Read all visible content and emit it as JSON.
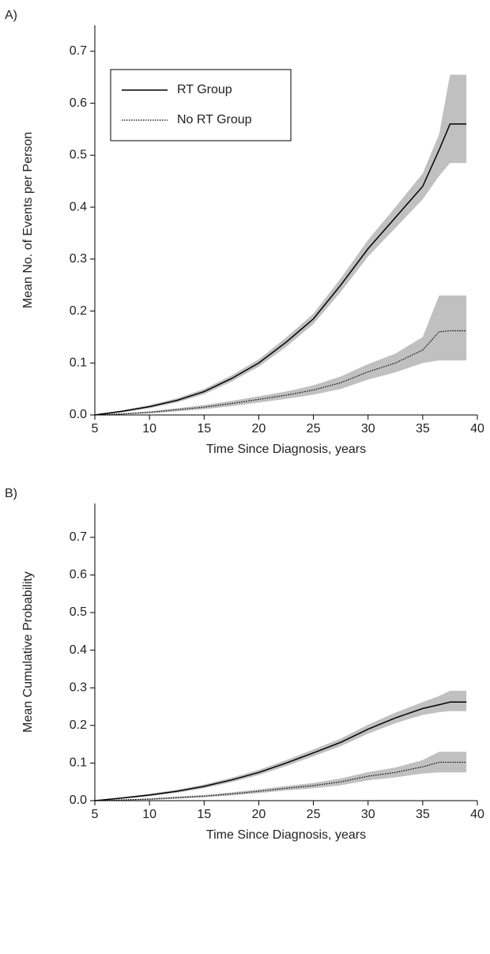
{
  "chart_data": [
    {
      "type": "line",
      "panel_label": "A)",
      "xlabel": "Time Since Diagnosis, years",
      "ylabel": "Mean No. of Events per Person",
      "x": [
        5,
        7.5,
        10,
        12.5,
        15,
        17.5,
        20,
        22.5,
        25,
        27.5,
        30,
        32.5,
        35,
        36.5,
        37.5,
        39
      ],
      "xlim": [
        5,
        40
      ],
      "xticks": [
        5,
        10,
        15,
        20,
        25,
        30,
        35,
        40
      ],
      "ylim": [
        0,
        0.75
      ],
      "yticks": [
        {
          "value": 0,
          "label": "0.0"
        },
        0.1,
        0.2,
        0.3,
        0.4,
        0.5,
        0.6,
        0.7
      ],
      "legend": "upper left",
      "band_color": "#c0c0c0",
      "series": [
        {
          "name": "RT Group",
          "color": "#000000",
          "linestyle": "solid",
          "values": [
            0,
            0.007,
            0.016,
            0.028,
            0.045,
            0.07,
            0.1,
            0.14,
            0.185,
            0.25,
            0.32,
            0.38,
            0.44,
            0.51,
            0.56,
            0.56
          ],
          "lower": [
            0,
            0.005,
            0.013,
            0.024,
            0.04,
            0.064,
            0.093,
            0.131,
            0.175,
            0.237,
            0.305,
            0.36,
            0.415,
            0.46,
            0.485,
            0.485
          ],
          "upper": [
            0,
            0.009,
            0.019,
            0.032,
            0.05,
            0.076,
            0.107,
            0.149,
            0.195,
            0.263,
            0.337,
            0.4,
            0.465,
            0.54,
            0.655,
            0.655
          ]
        },
        {
          "name": "No RT Group",
          "color": "#000000",
          "linestyle": "dotted",
          "values": [
            0,
            0.002,
            0.005,
            0.01,
            0.015,
            0.022,
            0.03,
            0.038,
            0.048,
            0.062,
            0.083,
            0.1,
            0.125,
            0.16,
            0.162,
            0.162
          ],
          "lower": [
            0,
            0.001,
            0.003,
            0.007,
            0.011,
            0.017,
            0.024,
            0.031,
            0.039,
            0.05,
            0.068,
            0.082,
            0.1,
            0.105,
            0.105,
            0.105
          ],
          "upper": [
            0,
            0.003,
            0.007,
            0.013,
            0.019,
            0.027,
            0.036,
            0.045,
            0.057,
            0.074,
            0.098,
            0.118,
            0.15,
            0.23,
            0.23,
            0.23
          ]
        }
      ]
    },
    {
      "type": "line",
      "panel_label": "B)",
      "xlabel": "Time Since Diagnosis, years",
      "ylabel": "Mean Cumulative Probability",
      "x": [
        5,
        7.5,
        10,
        12.5,
        15,
        17.5,
        20,
        22.5,
        25,
        27.5,
        30,
        32.5,
        35,
        36.5,
        37.5,
        39
      ],
      "xlim": [
        5,
        40
      ],
      "xticks": [
        5,
        10,
        15,
        20,
        25,
        30,
        35,
        40
      ],
      "ylim": [
        0,
        0.79
      ],
      "yticks": [
        {
          "value": 0,
          "label": "0.0"
        },
        0.1,
        0.2,
        0.3,
        0.4,
        0.5,
        0.6,
        0.7
      ],
      "band_color": "#c0c0c0",
      "series": [
        {
          "color": "#000000",
          "linestyle": "solid",
          "values": [
            0,
            0.007,
            0.015,
            0.025,
            0.038,
            0.055,
            0.075,
            0.1,
            0.127,
            0.155,
            0.19,
            0.22,
            0.245,
            0.255,
            0.262,
            0.262
          ],
          "lower": [
            0,
            0.005,
            0.012,
            0.021,
            0.033,
            0.049,
            0.068,
            0.092,
            0.118,
            0.145,
            0.178,
            0.206,
            0.228,
            0.235,
            0.238,
            0.238
          ],
          "upper": [
            0,
            0.009,
            0.018,
            0.029,
            0.043,
            0.061,
            0.082,
            0.108,
            0.136,
            0.165,
            0.202,
            0.234,
            0.262,
            0.278,
            0.292,
            0.292
          ]
        },
        {
          "color": "#000000",
          "linestyle": "dotted",
          "values": [
            0,
            0.002,
            0.004,
            0.008,
            0.012,
            0.018,
            0.025,
            0.033,
            0.04,
            0.05,
            0.065,
            0.075,
            0.09,
            0.102,
            0.102,
            0.102
          ],
          "lower": [
            0,
            0.001,
            0.002,
            0.005,
            0.009,
            0.014,
            0.02,
            0.027,
            0.033,
            0.041,
            0.054,
            0.062,
            0.072,
            0.075,
            0.075,
            0.075
          ],
          "upper": [
            0,
            0.003,
            0.006,
            0.011,
            0.015,
            0.022,
            0.03,
            0.039,
            0.047,
            0.059,
            0.076,
            0.088,
            0.108,
            0.13,
            0.13,
            0.13
          ]
        }
      ]
    }
  ]
}
